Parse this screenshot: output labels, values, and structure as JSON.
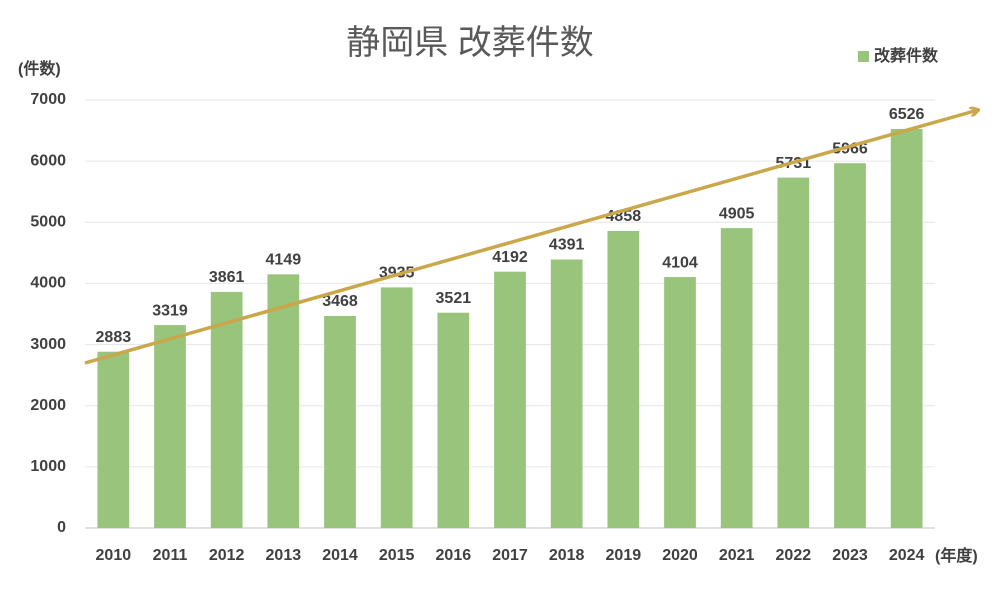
{
  "chart_data": {
    "type": "bar",
    "title": "静岡県 改葬件数",
    "y_label": "(件数)",
    "x_label": "(年度)",
    "categories": [
      "2010",
      "2011",
      "2012",
      "2013",
      "2014",
      "2015",
      "2016",
      "2017",
      "2018",
      "2019",
      "2020",
      "2021",
      "2022",
      "2023",
      "2024"
    ],
    "series": [
      {
        "name": "改葬件数",
        "color": "#98c47c",
        "values": [
          2883,
          3319,
          3861,
          4149,
          3468,
          3935,
          3521,
          4192,
          4391,
          4858,
          4104,
          4905,
          5731,
          5966,
          6526
        ]
      }
    ],
    "ylim": [
      0,
      7000
    ],
    "yticks": [
      0,
      1000,
      2000,
      3000,
      4000,
      5000,
      6000,
      7000
    ],
    "grid": true,
    "legend": "top-right"
  }
}
